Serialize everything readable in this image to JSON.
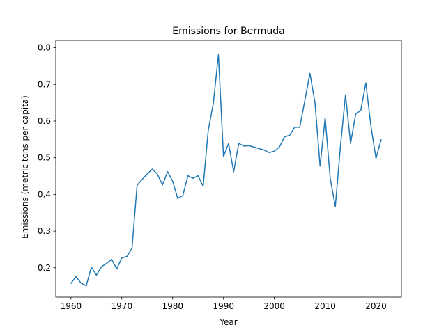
{
  "chart_data": {
    "type": "line",
    "title": "Emissions for Bermuda",
    "xlabel": "Year",
    "ylabel": "Emissions (metric tons per capita)",
    "xlim": [
      1957,
      2025
    ],
    "ylim": [
      0.12,
      0.82
    ],
    "xticks": [
      1960,
      1970,
      1980,
      1990,
      2000,
      2010,
      2020
    ],
    "yticks": [
      0.2,
      0.3,
      0.4,
      0.5,
      0.6,
      0.7,
      0.8
    ],
    "grid": false,
    "series": [
      {
        "color": "#1f77b4",
        "x": [
          1960,
          1961,
          1962,
          1963,
          1964,
          1965,
          1966,
          1967,
          1968,
          1969,
          1970,
          1971,
          1972,
          1973,
          1974,
          1975,
          1976,
          1977,
          1978,
          1979,
          1980,
          1981,
          1982,
          1983,
          1984,
          1985,
          1986,
          1987,
          1988,
          1989,
          1990,
          1991,
          1992,
          1993,
          1994,
          1995,
          1996,
          1997,
          1998,
          1999,
          2000,
          2001,
          2002,
          2003,
          2004,
          2005,
          2006,
          2007,
          2008,
          2009,
          2010,
          2011,
          2012,
          2013,
          2014,
          2015,
          2016,
          2017,
          2018,
          2019,
          2020,
          2021
        ],
        "y": [
          0.158,
          0.176,
          0.158,
          0.151,
          0.202,
          0.18,
          0.203,
          0.212,
          0.223,
          0.197,
          0.227,
          0.231,
          0.253,
          0.425,
          0.441,
          0.456,
          0.469,
          0.455,
          0.426,
          0.462,
          0.436,
          0.389,
          0.397,
          0.451,
          0.444,
          0.451,
          0.422,
          0.575,
          0.648,
          0.781,
          0.503,
          0.539,
          0.462,
          0.539,
          0.532,
          0.533,
          0.529,
          0.525,
          0.521,
          0.514,
          0.518,
          0.529,
          0.557,
          0.561,
          0.583,
          0.583,
          0.656,
          0.73,
          0.65,
          0.477,
          0.609,
          0.443,
          0.367,
          0.53,
          0.671,
          0.539,
          0.619,
          0.629,
          0.704,
          0.587,
          0.498,
          0.549
        ]
      }
    ]
  }
}
